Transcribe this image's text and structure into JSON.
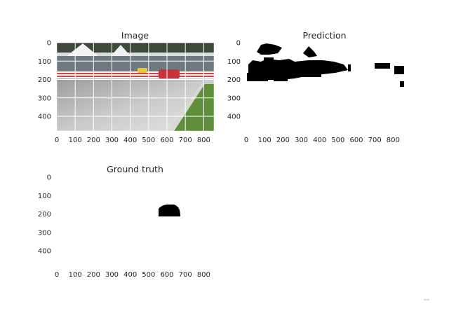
{
  "chart_data": [
    {
      "type": "image",
      "title": "Image",
      "xticks": [
        0,
        100,
        200,
        300,
        400,
        500,
        600,
        700,
        800
      ],
      "yticks": [
        0,
        100,
        200,
        300,
        400
      ],
      "xlim": [
        0,
        856
      ],
      "ylim": [
        0,
        480
      ],
      "grid": true
    },
    {
      "type": "image",
      "title": "Prediction",
      "xticks": [
        0,
        100,
        200,
        300,
        400,
        500,
        600,
        700,
        800
      ],
      "yticks": [
        0,
        100,
        200,
        300,
        400
      ],
      "xlim": [
        0,
        856
      ],
      "ylim": [
        0,
        480
      ],
      "grid": false
    },
    {
      "type": "image",
      "title": "Ground truth",
      "xticks": [
        0,
        100,
        200,
        300,
        400,
        500,
        600,
        700,
        800
      ],
      "yticks": [
        0,
        100,
        200,
        300,
        400
      ],
      "xlim": [
        0,
        856
      ],
      "ylim": [
        0,
        480
      ],
      "grid": false
    }
  ]
}
